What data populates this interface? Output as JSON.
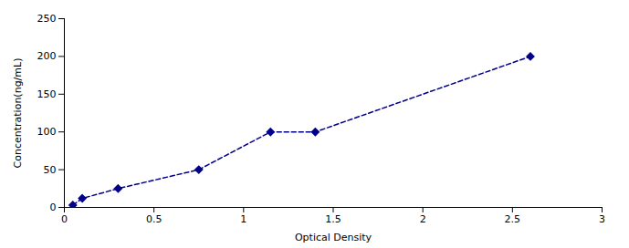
{
  "chart_data": {
    "type": "line",
    "x": [
      0.047,
      0.1,
      0.3,
      0.75,
      1.15,
      1.4,
      2.6
    ],
    "values": [
      3,
      12,
      25,
      50,
      100,
      100,
      200
    ],
    "color": "#00008B",
    "marker": "diamond",
    "line_style": "dashed",
    "xlabel": "Optical Density",
    "ylabel": "Concentration(ng/mL)",
    "xlim": [
      0,
      3
    ],
    "ylim": [
      0,
      250
    ],
    "xticks": [
      0,
      0.5,
      1,
      1.5,
      2,
      2.5,
      3
    ],
    "yticks": [
      0,
      50,
      100,
      150,
      200,
      250
    ],
    "grid": false
  }
}
